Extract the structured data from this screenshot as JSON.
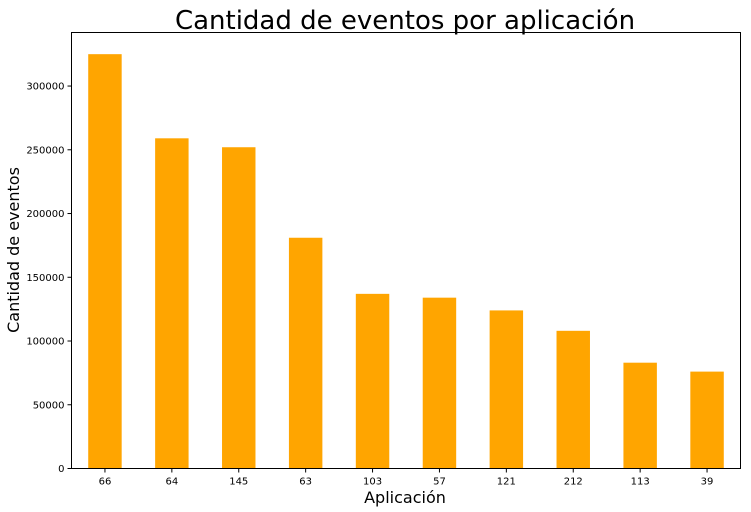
{
  "chart_data": {
    "type": "bar",
    "title": "Cantidad de eventos por aplicación",
    "xlabel": "Aplicación",
    "ylabel": "Cantidad de eventos",
    "categories": [
      "66",
      "64",
      "145",
      "63",
      "103",
      "57",
      "121",
      "212",
      "113",
      "39"
    ],
    "values": [
      325000,
      259000,
      252000,
      181000,
      137000,
      134000,
      124000,
      108000,
      83000,
      76000
    ],
    "ylim": [
      0,
      342000
    ],
    "yticks": [
      0,
      50000,
      100000,
      150000,
      200000,
      250000,
      300000
    ],
    "bar_color": "#ffa500",
    "grid": false,
    "legend": "none"
  }
}
